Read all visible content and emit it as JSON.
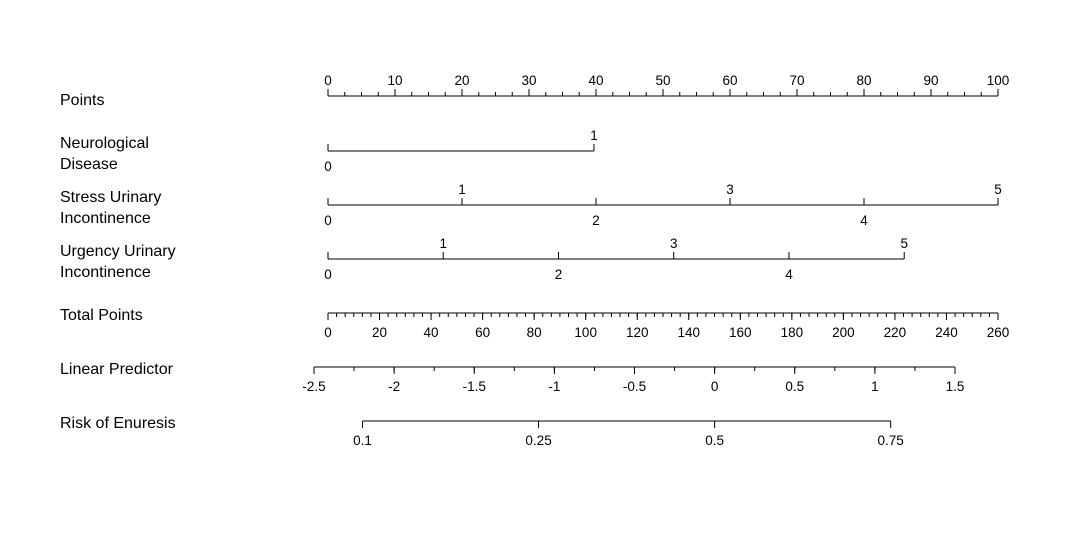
{
  "chart_data": {
    "type": "nomogram",
    "scales": [
      {
        "name": "Points",
        "label_lines": [
          "Points"
        ],
        "min": 0,
        "max": 100,
        "ticks": [
          0,
          10,
          20,
          30,
          40,
          50,
          60,
          70,
          80,
          90,
          100
        ],
        "minor_step": 2.5
      },
      {
        "name": "Neurological Disease",
        "label_lines": [
          "Neurological",
          "Disease"
        ],
        "categories": [
          {
            "label": "0",
            "points": 0
          },
          {
            "label": "1",
            "points": 39.7
          }
        ]
      },
      {
        "name": "Stress Urinary Incontinence",
        "label_lines": [
          "Stress Urinary",
          "Incontinence"
        ],
        "categories": [
          {
            "label": "0",
            "points": 0
          },
          {
            "label": "1",
            "points": 20
          },
          {
            "label": "2",
            "points": 40
          },
          {
            "label": "3",
            "points": 60
          },
          {
            "label": "4",
            "points": 80
          },
          {
            "label": "5",
            "points": 100
          }
        ]
      },
      {
        "name": "Urgency Urinary Incontinence",
        "label_lines": [
          "Urgency Urinary",
          "Incontinence"
        ],
        "categories": [
          {
            "label": "0",
            "points": 0
          },
          {
            "label": "1",
            "points": 17.2
          },
          {
            "label": "2",
            "points": 34.4
          },
          {
            "label": "3",
            "points": 51.6
          },
          {
            "label": "4",
            "points": 68.8
          },
          {
            "label": "5",
            "points": 86
          }
        ]
      },
      {
        "name": "Total Points",
        "label_lines": [
          "Total Points"
        ],
        "min": 0,
        "max": 260,
        "ticks": [
          0,
          20,
          40,
          60,
          80,
          100,
          120,
          140,
          160,
          180,
          200,
          220,
          240,
          260
        ]
      },
      {
        "name": "Linear Predictor",
        "label_lines": [
          "Linear Predictor"
        ],
        "min": -2.5,
        "max": 1.5,
        "ticks": [
          "-2.5",
          "-2",
          "-1.5",
          "-1",
          "-0.5",
          "0",
          "0.5",
          "1",
          "1.5"
        ],
        "minor_step": 0.25
      },
      {
        "name": "Risk of Enuresis",
        "label_lines": [
          "Risk of Enuresis"
        ],
        "ticks": [
          "0.1",
          "0.25",
          "0.5",
          "0.75"
        ]
      }
    ]
  }
}
